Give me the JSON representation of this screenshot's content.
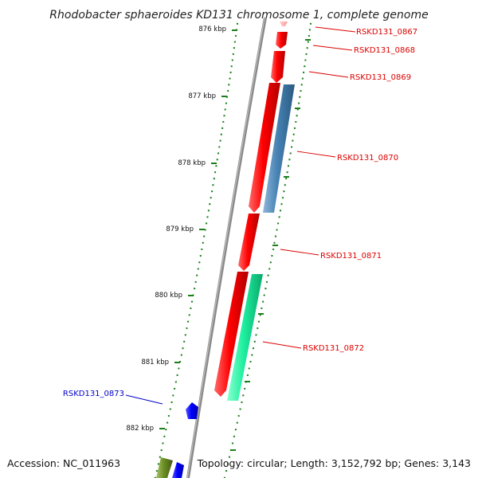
{
  "title": "Rhodobacter sphaeroides KD131 chromosome 1, complete genome",
  "accession_text": "Accession: NC_011963",
  "topology_text": "Topology: circular; Length: 3,152,792 bp; Genes: 3,143",
  "scale_ticks": [
    "876 kbp",
    "877 kbp",
    "878 kbp",
    "879 kbp",
    "880 kbp",
    "881 kbp",
    "882 kbp"
  ],
  "genes": [
    {
      "label": "RSKD131_0867",
      "color": "#ee0000",
      "strand": "forward"
    },
    {
      "label": "RSKD131_0868",
      "color": "#ee0000",
      "strand": "forward"
    },
    {
      "label": "RSKD131_0869",
      "color": "#ee0000",
      "strand": "forward"
    },
    {
      "label": "RSKD131_0870",
      "color": "#4682b4",
      "strand": "forward"
    },
    {
      "label": "RSKD131_0871",
      "color": "#ee0000",
      "strand": "forward"
    },
    {
      "label": "RSKD131_0872",
      "color": "#00e08a",
      "strand": "forward"
    },
    {
      "label": "RSKD131_0873",
      "color": "#0000ee",
      "strand": "reverse"
    }
  ],
  "colors": {
    "backbone": "#888888",
    "tick_green": "#1a7f1a",
    "forward_label": "#dd0000",
    "reverse_label": "#0000cc"
  }
}
